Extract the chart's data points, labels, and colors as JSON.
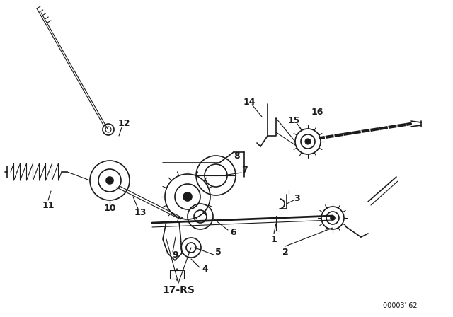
{
  "bg_color": "#ffffff",
  "line_color": "#1a1a1a",
  "diagram_code": "00003’ 62",
  "part_label": "17-RS",
  "figsize": [
    6.4,
    4.48
  ],
  "dpi": 100
}
